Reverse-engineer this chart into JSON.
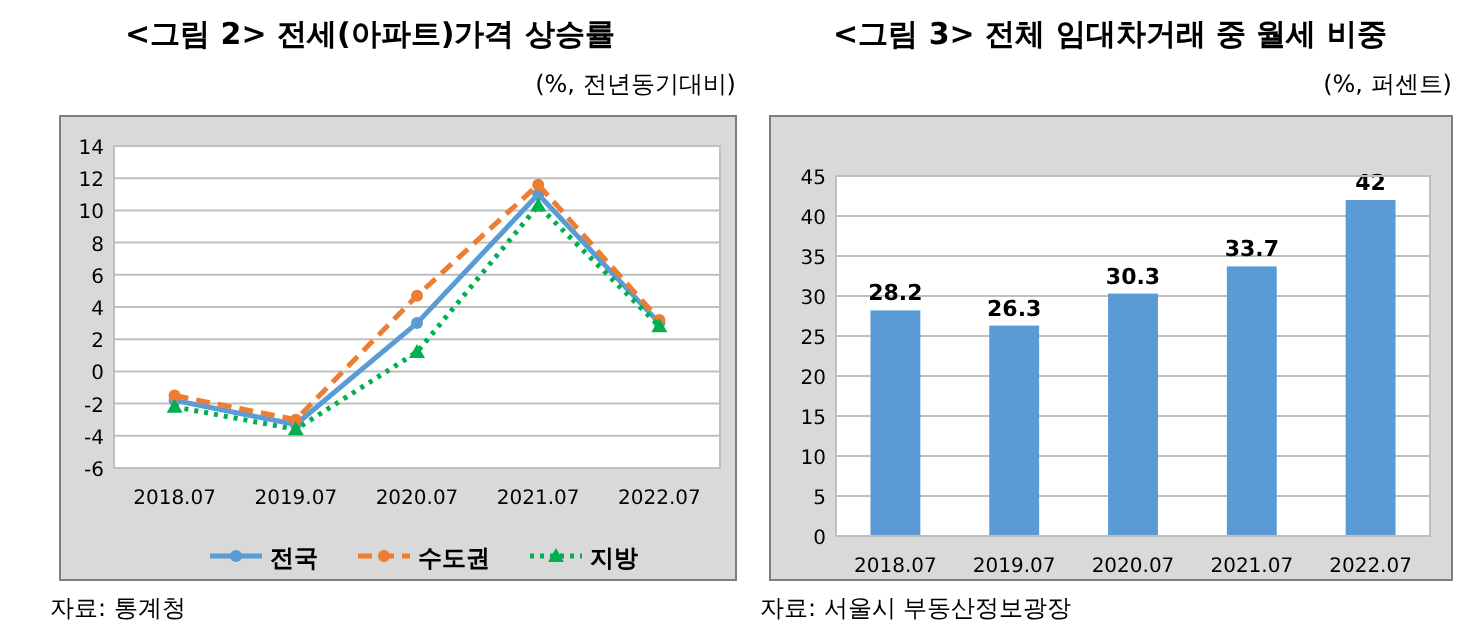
{
  "chart_data": [
    {
      "type": "line",
      "title": "<그림 2> 전세(아파트)가격 상승률",
      "subtitle": "(%, 전년동기대비)",
      "categories": [
        "2018.07",
        "2019.07",
        "2020.07",
        "2021.07",
        "2022.07"
      ],
      "series": [
        {
          "name": "전국",
          "color": "#5b9bd5",
          "values": [
            -1.8,
            -3.3,
            3.0,
            11.0,
            3.0
          ],
          "marker": "circle",
          "line_style": "solid"
        },
        {
          "name": "수도권",
          "color": "#ed7d31",
          "values": [
            -1.5,
            -3.0,
            4.7,
            11.6,
            3.2
          ],
          "marker": "circle",
          "line_style": "dashed"
        },
        {
          "name": "지방",
          "color": "#00b050",
          "values": [
            -2.2,
            -3.6,
            1.2,
            10.3,
            2.8
          ],
          "marker": "triangle",
          "line_style": "dotted"
        }
      ],
      "ylim": [
        -6,
        14
      ],
      "yticks": [
        -6,
        -4,
        -2,
        0,
        2,
        4,
        6,
        8,
        10,
        12,
        14
      ],
      "grid": "y",
      "legend": "bottom",
      "annotations": [
        "자료: 통계청"
      ]
    },
    {
      "type": "bar",
      "title": "<그림 3> 전체 임대차거래 중 월세 비중",
      "subtitle": "(%, 퍼센트)",
      "categories": [
        "2018.07",
        "2019.07",
        "2020.07",
        "2021.07",
        "2022.07"
      ],
      "values": [
        28.2,
        26.3,
        30.3,
        33.7,
        42
      ],
      "color": "#5b9bd5",
      "ylim": [
        0,
        45
      ],
      "yticks": [
        0,
        5,
        10,
        15,
        20,
        25,
        30,
        35,
        40,
        45
      ],
      "grid": "y",
      "data_labels": true,
      "annotations": [
        "자료: 서울시 부동산정보광장"
      ]
    }
  ]
}
